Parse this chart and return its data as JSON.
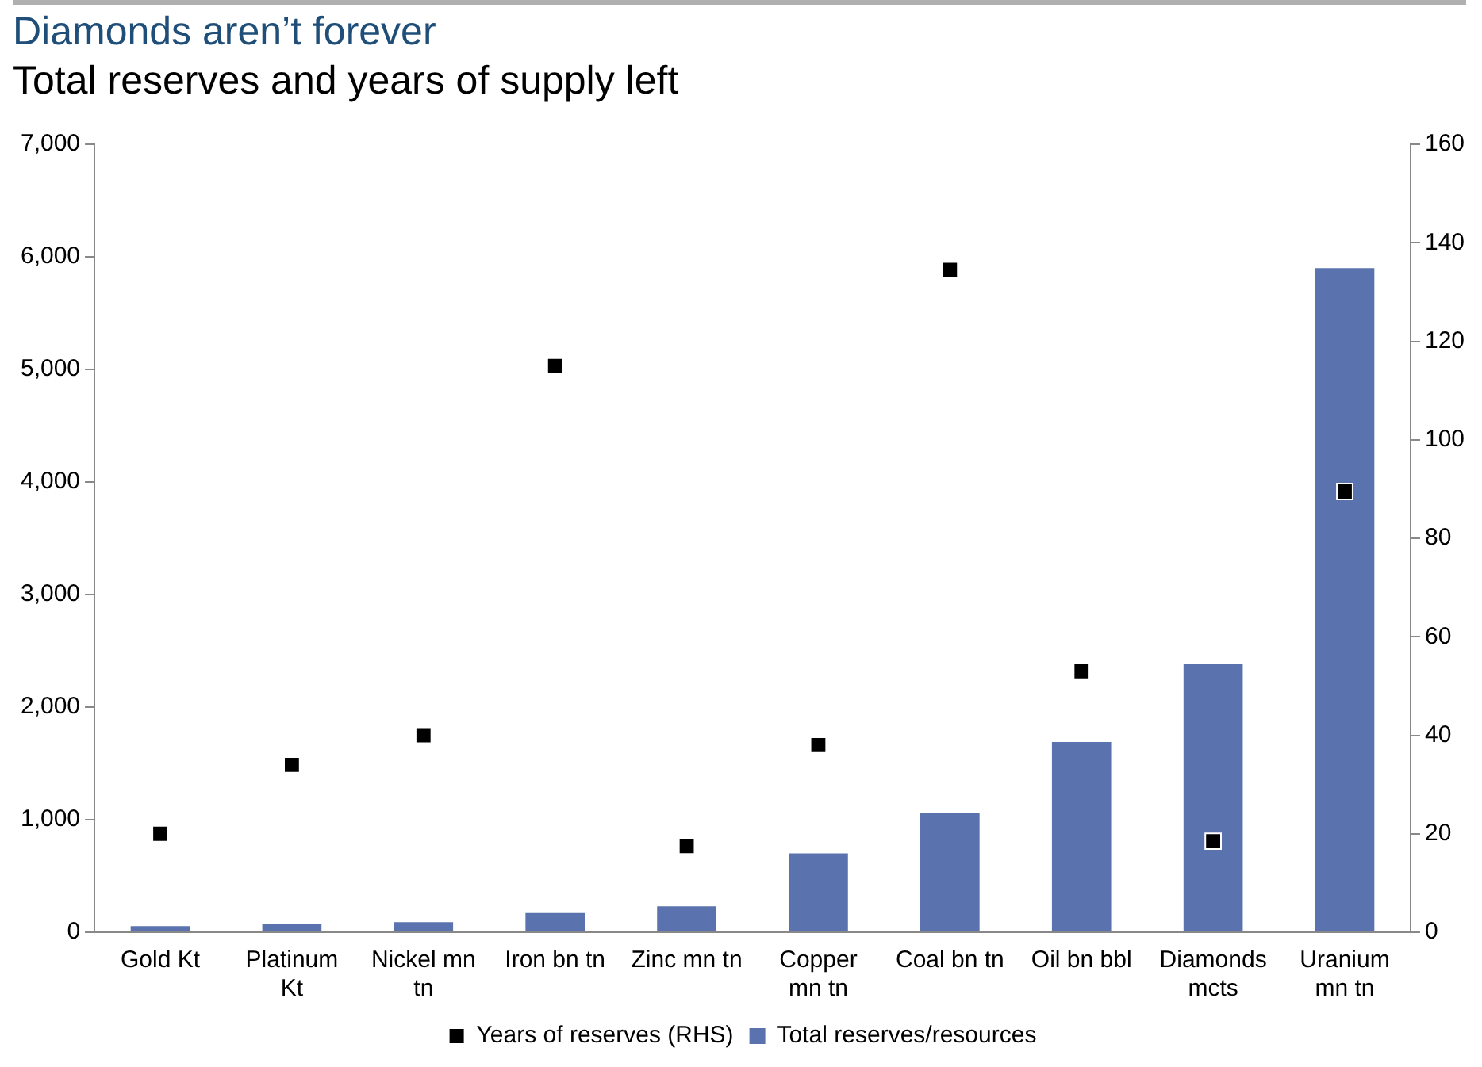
{
  "chart_data": {
    "type": "bar",
    "title": "Diamonds aren’t forever",
    "subtitle": "Total reserves and years of supply left",
    "categories": [
      "Gold Kt",
      "Platinum Kt",
      "Nickel mn tn",
      "Iron bn tn",
      "Zinc mn tn",
      "Copper mn tn",
      "Coal bn tn",
      "Oil bn bbl",
      "Diamonds mcts",
      "Uranium mn tn"
    ],
    "series": [
      {
        "name": "Total reserves/resources",
        "color": "#5a72ad",
        "values": [
          55,
          70,
          90,
          170,
          230,
          700,
          1060,
          1690,
          2380,
          5900
        ]
      },
      {
        "name": "Years of reserves (RHS)",
        "type": "scatter",
        "axis": "y2",
        "color": "#000000",
        "values": [
          20,
          34,
          40,
          115,
          17.5,
          38,
          134.5,
          53,
          18.5,
          89.5
        ]
      }
    ],
    "ylim": [
      0,
      7000
    ],
    "yticks": [
      0,
      {
        "value": 1000,
        "label": "1,000"
      },
      {
        "value": 2000,
        "label": "2,000"
      },
      {
        "value": 3000,
        "label": "3,000"
      },
      {
        "value": 4000,
        "label": "4,000"
      },
      {
        "value": 5000,
        "label": "5,000"
      },
      {
        "value": 6000,
        "label": "6,000"
      },
      {
        "value": 7000,
        "label": "7,000"
      }
    ],
    "y2lim": [
      0,
      160
    ],
    "y2ticks": [
      0,
      20,
      40,
      60,
      80,
      100,
      120,
      140,
      160
    ],
    "grid": false,
    "legend": "bottom",
    "marker": "square"
  }
}
